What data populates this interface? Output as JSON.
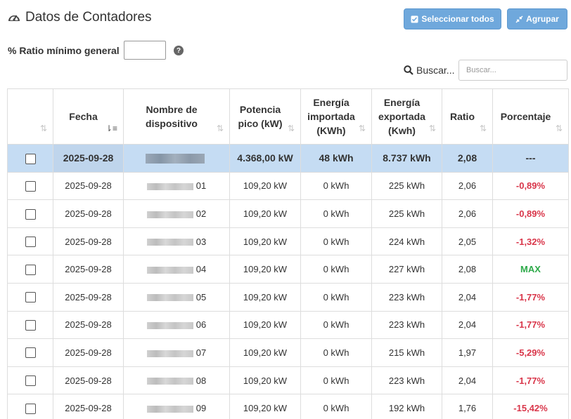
{
  "page": {
    "title": "Datos de Contadores",
    "icon": "tachometer-icon"
  },
  "toolbar": {
    "select_all_label": "Seleccionar todos",
    "group_label": "Agrupar",
    "accent_color": "#6fa8dc"
  },
  "filters": {
    "ratio_label": "% Ratio mínimo general",
    "ratio_value": "",
    "search_label": "Buscar...",
    "search_placeholder": "Buscar..."
  },
  "table": {
    "columns": [
      "",
      "Fecha",
      "Nombre de dispositivo",
      "Potencia pico (kW)",
      "Energía importada (KWh)",
      "Energía exportada (Kwh)",
      "Ratio",
      "Porcentaje"
    ],
    "total_row": {
      "fecha": "2025-09-28",
      "potencia": "4.368,00 kW",
      "importada": "48 kWh",
      "exportada": "8.737 kWh",
      "ratio": "2,08",
      "porcentaje": "---"
    },
    "rows": [
      {
        "fecha": "2025-09-28",
        "suffix": "01",
        "potencia": "109,20 kW",
        "importada": "0 kWh",
        "exportada": "225 kWh",
        "ratio": "2,06",
        "porcentaje": "-0,89%",
        "status": "neg"
      },
      {
        "fecha": "2025-09-28",
        "suffix": "02",
        "potencia": "109,20 kW",
        "importada": "0 kWh",
        "exportada": "225 kWh",
        "ratio": "2,06",
        "porcentaje": "-0,89%",
        "status": "neg"
      },
      {
        "fecha": "2025-09-28",
        "suffix": "03",
        "potencia": "109,20 kW",
        "importada": "0 kWh",
        "exportada": "224 kWh",
        "ratio": "2,05",
        "porcentaje": "-1,32%",
        "status": "neg"
      },
      {
        "fecha": "2025-09-28",
        "suffix": "04",
        "potencia": "109,20 kW",
        "importada": "0 kWh",
        "exportada": "227 kWh",
        "ratio": "2,08",
        "porcentaje": "MAX",
        "status": "max"
      },
      {
        "fecha": "2025-09-28",
        "suffix": "05",
        "potencia": "109,20 kW",
        "importada": "0 kWh",
        "exportada": "223 kWh",
        "ratio": "2,04",
        "porcentaje": "-1,77%",
        "status": "neg"
      },
      {
        "fecha": "2025-09-28",
        "suffix": "06",
        "potencia": "109,20 kW",
        "importada": "0 kWh",
        "exportada": "223 kWh",
        "ratio": "2,04",
        "porcentaje": "-1,77%",
        "status": "neg"
      },
      {
        "fecha": "2025-09-28",
        "suffix": "07",
        "potencia": "109,20 kW",
        "importada": "0 kWh",
        "exportada": "215 kWh",
        "ratio": "1,97",
        "porcentaje": "-5,29%",
        "status": "neg"
      },
      {
        "fecha": "2025-09-28",
        "suffix": "08",
        "potencia": "109,20 kW",
        "importada": "0 kWh",
        "exportada": "223 kWh",
        "ratio": "2,04",
        "porcentaje": "-1,77%",
        "status": "neg"
      },
      {
        "fecha": "2025-09-28",
        "suffix": "09",
        "potencia": "109,20 kW",
        "importada": "0 kWh",
        "exportada": "192 kWh",
        "ratio": "1,76",
        "porcentaje": "-15,42%",
        "status": "neg"
      }
    ],
    "colors": {
      "negative": "#d9364a",
      "max": "#2eaa4a",
      "total_row": "#c5dcf3"
    }
  }
}
